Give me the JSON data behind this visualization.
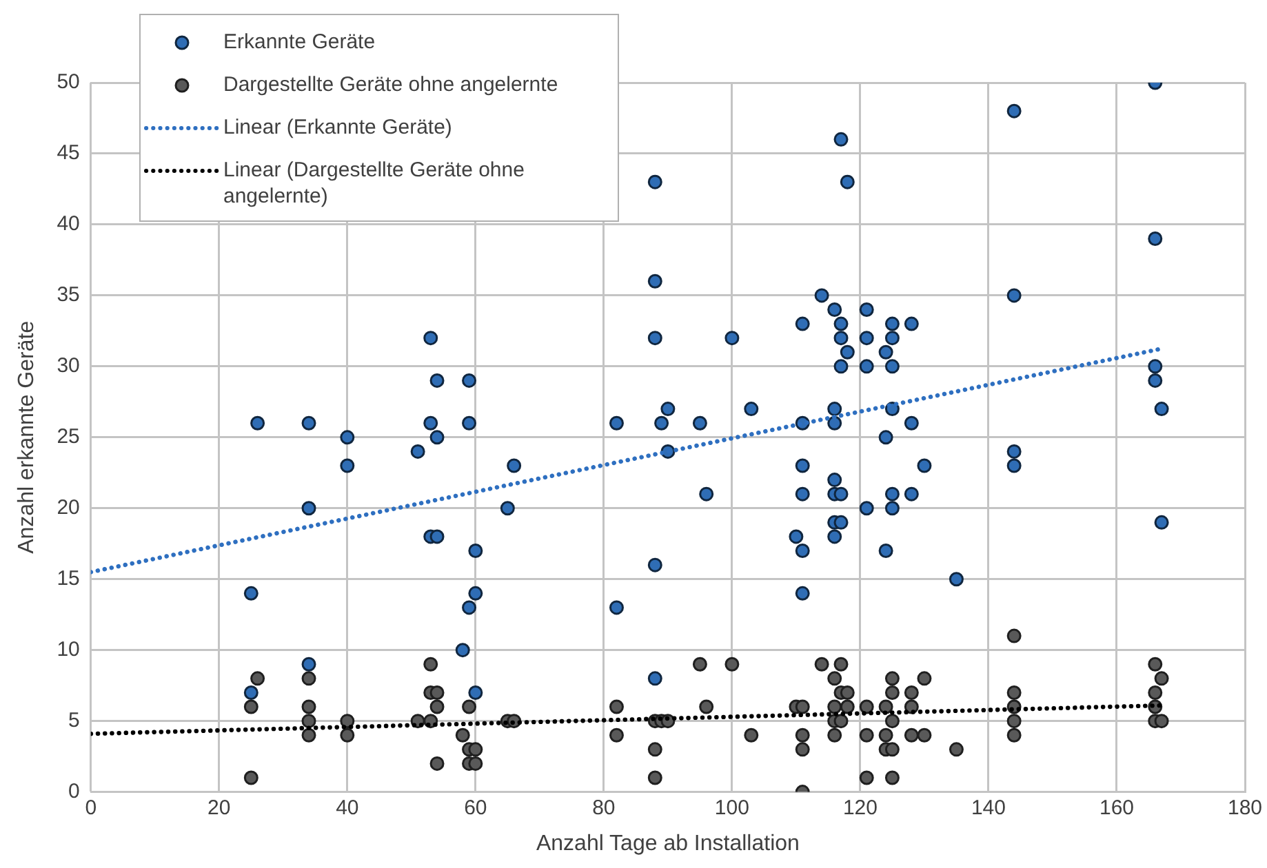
{
  "chart_data": {
    "type": "scatter",
    "xlabel": "Anzahl Tage ab Installation",
    "ylabel": "Anzahl erkannte Geräte",
    "xlim": [
      0,
      180
    ],
    "xticks": [
      0,
      20,
      40,
      60,
      80,
      100,
      120,
      140,
      160,
      180
    ],
    "ylim": [
      0,
      50
    ],
    "yticks": [
      0,
      5,
      10,
      15,
      20,
      25,
      30,
      35,
      40,
      45,
      50
    ],
    "grid": true,
    "legend": "top left",
    "marker": "circle",
    "series": [
      {
        "name": "Erkannte Geräte",
        "color": "#2f6db5",
        "x": [
          25,
          25,
          26,
          34,
          34,
          34,
          40,
          40,
          51,
          53,
          53,
          53,
          54,
          54,
          54,
          58,
          59,
          59,
          59,
          60,
          60,
          60,
          65,
          66,
          82,
          82,
          88,
          88,
          88,
          88,
          88,
          89,
          90,
          90,
          95,
          96,
          100,
          103,
          110,
          111,
          111,
          111,
          111,
          111,
          111,
          114,
          116,
          116,
          116,
          116,
          116,
          116,
          116,
          117,
          117,
          117,
          117,
          117,
          117,
          118,
          118,
          121,
          121,
          121,
          121,
          124,
          124,
          124,
          125,
          125,
          125,
          125,
          125,
          125,
          128,
          128,
          128,
          130,
          135,
          144,
          144,
          144,
          144,
          166,
          166,
          166,
          166,
          167,
          167
        ],
        "values": [
          14,
          7,
          26,
          26,
          20,
          9,
          25,
          23,
          24,
          32,
          26,
          18,
          29,
          25,
          18,
          10,
          29,
          26,
          13,
          17,
          14,
          7,
          20,
          23,
          26,
          13,
          43,
          36,
          32,
          16,
          8,
          26,
          27,
          24,
          26,
          21,
          32,
          27,
          18,
          33,
          26,
          23,
          21,
          17,
          14,
          35,
          34,
          27,
          26,
          22,
          21,
          19,
          18,
          46,
          33,
          32,
          30,
          21,
          19,
          43,
          31,
          34,
          32,
          30,
          20,
          31,
          25,
          17,
          33,
          32,
          30,
          27,
          21,
          20,
          33,
          26,
          21,
          23,
          15,
          48,
          35,
          24,
          23,
          50,
          39,
          30,
          29,
          27,
          19
        ]
      },
      {
        "name": "Dargestellte Geräte ohne angelernte",
        "color": "#595959",
        "x": [
          25,
          25,
          26,
          34,
          34,
          34,
          34,
          40,
          40,
          51,
          53,
          53,
          53,
          54,
          54,
          54,
          58,
          59,
          59,
          59,
          60,
          60,
          65,
          66,
          82,
          82,
          88,
          88,
          88,
          89,
          90,
          95,
          96,
          100,
          103,
          110,
          111,
          111,
          111,
          111,
          114,
          116,
          116,
          116,
          116,
          117,
          117,
          117,
          118,
          118,
          121,
          121,
          121,
          124,
          124,
          124,
          125,
          125,
          125,
          125,
          125,
          128,
          128,
          128,
          130,
          130,
          135,
          144,
          144,
          144,
          144,
          144,
          166,
          166,
          166,
          166,
          167,
          167
        ],
        "values": [
          6,
          1,
          8,
          8,
          6,
          5,
          4,
          5,
          4,
          5,
          9,
          7,
          5,
          7,
          6,
          2,
          4,
          6,
          3,
          2,
          3,
          2,
          5,
          5,
          6,
          4,
          5,
          3,
          1,
          5,
          5,
          9,
          6,
          9,
          4,
          6,
          6,
          4,
          3,
          0,
          9,
          8,
          6,
          5,
          4,
          9,
          7,
          5,
          7,
          6,
          6,
          4,
          1,
          6,
          4,
          3,
          8,
          7,
          5,
          3,
          1,
          7,
          6,
          4,
          8,
          4,
          3,
          11,
          7,
          6,
          5,
          4,
          9,
          7,
          6,
          5,
          8,
          5
        ]
      },
      {
        "name": "Linear (Erkannte Geräte)",
        "type": "line",
        "color": "#2e6fc0",
        "marker": "none",
        "line_style": "dotted",
        "x": [
          0,
          166.5
        ],
        "values": [
          15.5,
          31.2
        ]
      },
      {
        "name": "Linear (Dargestellte Geräte ohne angelernte)",
        "type": "line",
        "color": "#000000",
        "marker": "none",
        "line_style": "dotted",
        "x": [
          0,
          167
        ],
        "values": [
          4.1,
          6.1
        ]
      }
    ]
  }
}
